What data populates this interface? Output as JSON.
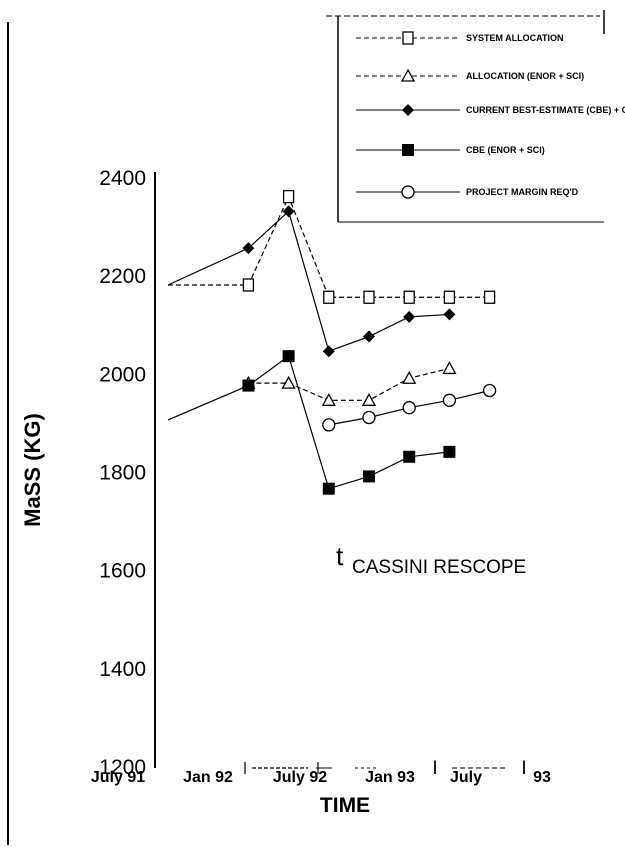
{
  "chart_data": {
    "type": "line",
    "title": "",
    "xlabel": "TIME",
    "ylabel": "MaSS (KG)",
    "ylim": [
      1200,
      2400
    ],
    "yticks": [
      "1200",
      "1400",
      "1600",
      "1800",
      "2000",
      "2200",
      "2400"
    ],
    "xticks": [
      "July 91",
      "Jan 92",
      "July 92",
      "Jan 93",
      "July",
      "93"
    ],
    "legend_position": "top-right",
    "series": [
      {
        "name": "SYSTEM ALLOCATION",
        "marker": "open-square",
        "dash": "dashed",
        "x": [
          "1991-07",
          "1992-01",
          "1992-04",
          "1992-07",
          "1992-10",
          "1993-01",
          "1993-04",
          "1993-07"
        ],
        "y": [
          2180,
          2180,
          2360,
          2155,
          2155,
          2155,
          2155,
          2155
        ]
      },
      {
        "name": "ALLOCATION (ENOR + SCI)",
        "marker": "open-triangle",
        "dash": "dashed",
        "x": [
          "1992-01",
          "1992-04",
          "1992-07",
          "1992-10",
          "1993-01",
          "1993-04"
        ],
        "y": [
          1980,
          1980,
          1945,
          1945,
          1990,
          2010
        ]
      },
      {
        "name": "CURRENT BEST-ESTIMATE (CBE) + CALC CONTG",
        "marker": "filled-diamond",
        "dash": "solid",
        "x": [
          "1991-07",
          "1992-01",
          "1992-04",
          "1992-07",
          "1992-10",
          "1993-01",
          "1993-04"
        ],
        "y": [
          2180,
          2255,
          2330,
          2045,
          2075,
          2115,
          2120
        ]
      },
      {
        "name": "CBE (ENOR + SCI)",
        "marker": "filled-square",
        "dash": "solid",
        "x": [
          "1991-07",
          "1992-01",
          "1992-04",
          "1992-07",
          "1992-10",
          "1993-01",
          "1993-04"
        ],
        "y": [
          1905,
          1975,
          2035,
          1765,
          1790,
          1830,
          1840
        ]
      },
      {
        "name": "PROJECT MARGIN REQ'D",
        "marker": "open-circle",
        "dash": "solid",
        "x": [
          "1992-07",
          "1992-10",
          "1993-01",
          "1993-04",
          "1993-07"
        ],
        "y": [
          1895,
          1910,
          1930,
          1945,
          1965
        ]
      }
    ],
    "annotations": [
      {
        "text_prefix": "t",
        "text": "CASSINI RESCOPE"
      },
      {
        "text": "I",
        "role": "bottom-marker"
      },
      {
        "text": "I",
        "role": "bottom-marker"
      }
    ]
  }
}
